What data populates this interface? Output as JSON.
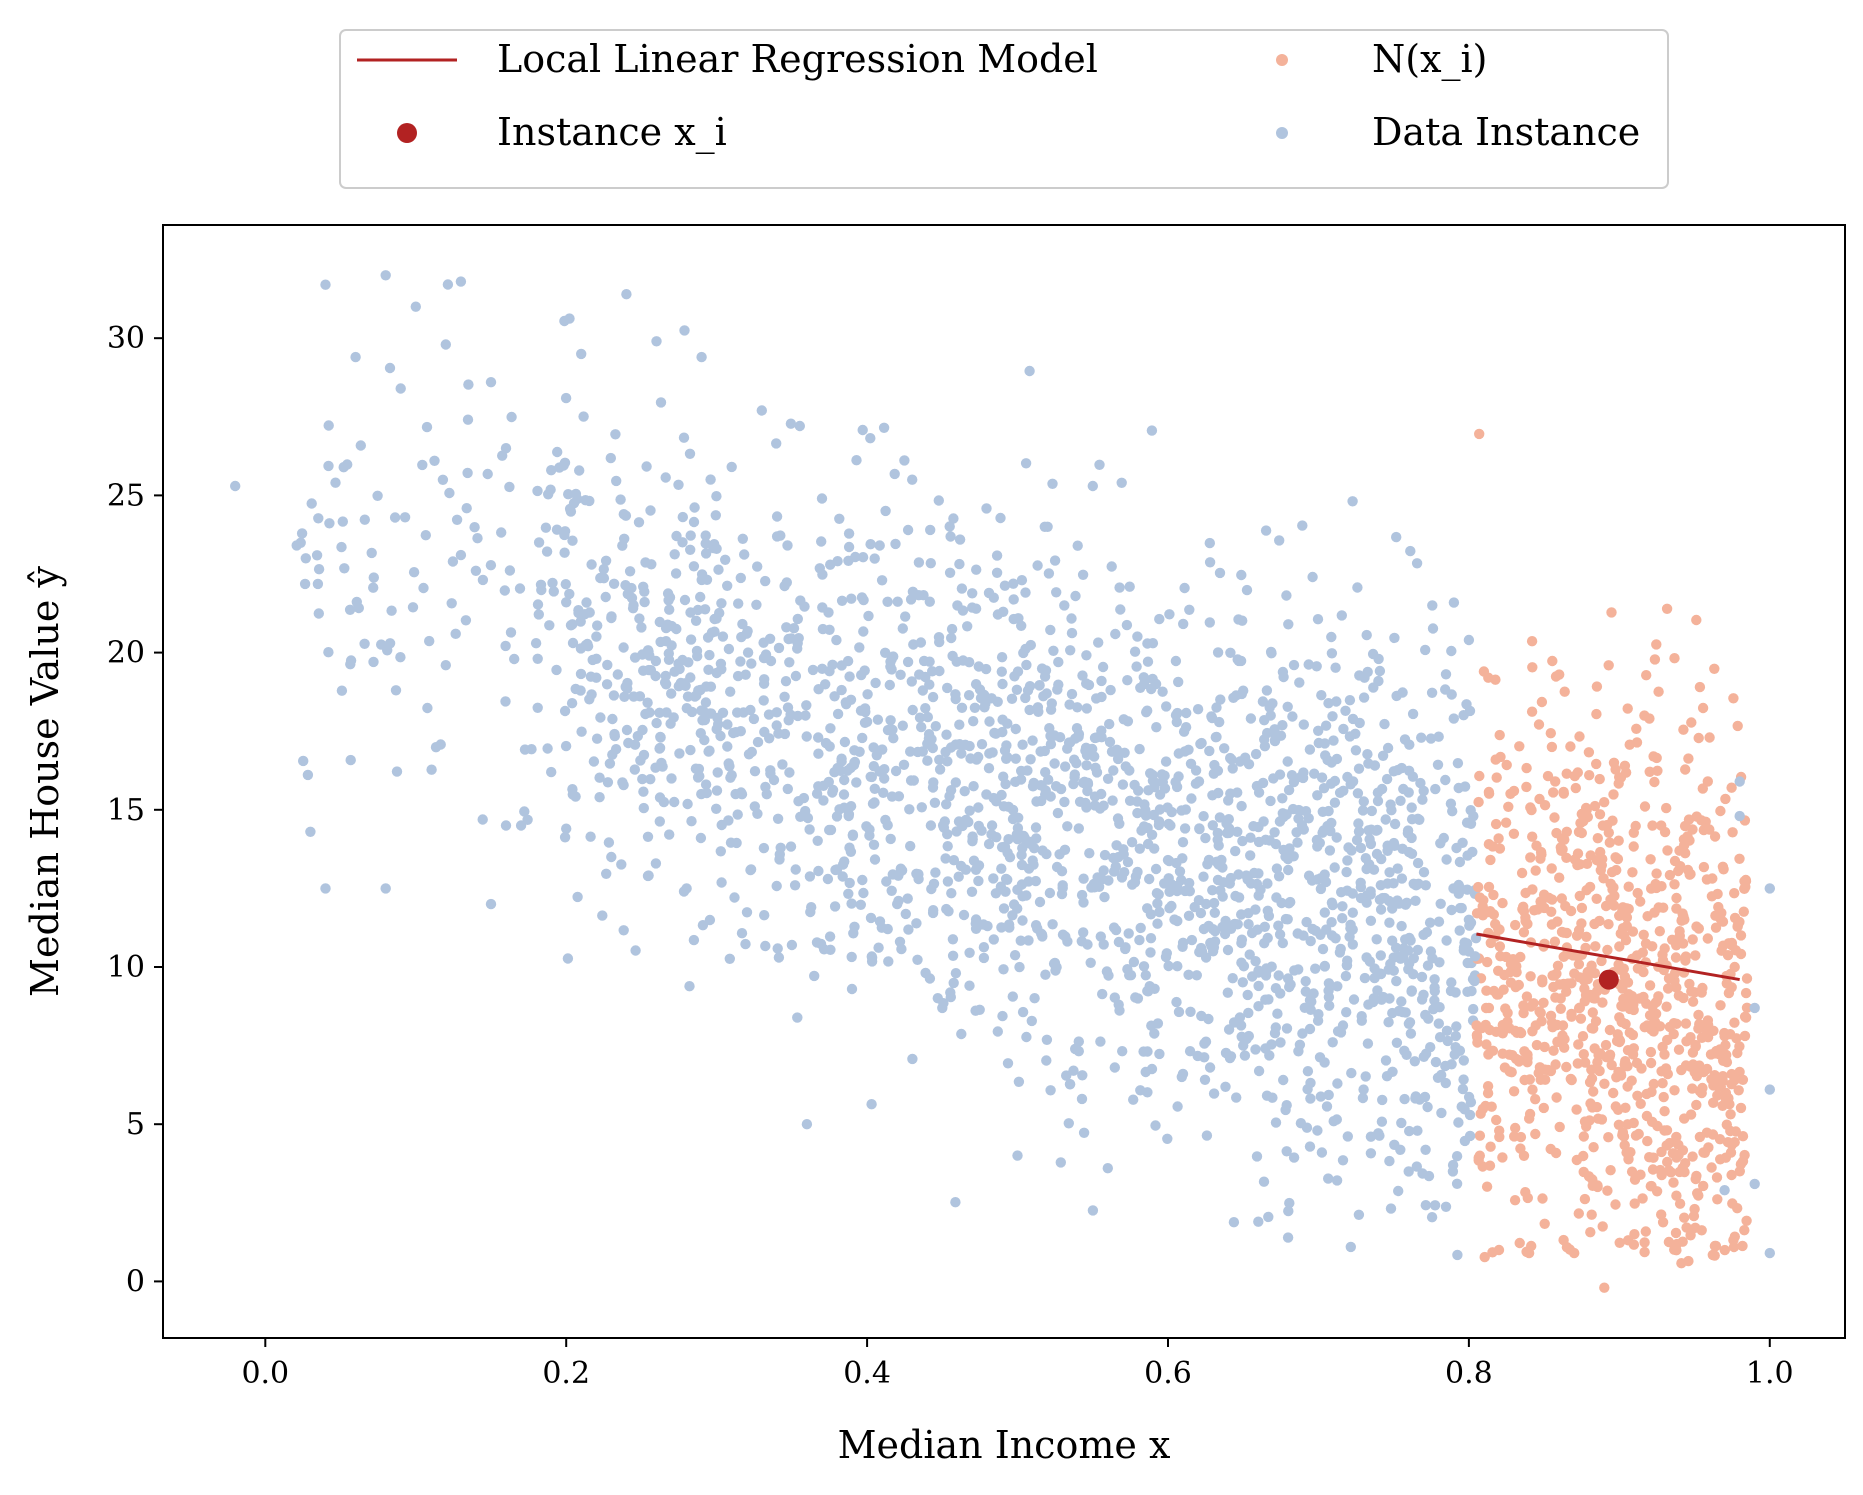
{
  "chart_data": {
    "type": "scatter",
    "title": "",
    "xlabel": "Median Income x",
    "ylabel": "Median House Value ŷ",
    "xlim": [
      -0.068,
      1.05
    ],
    "ylim": [
      -1.8,
      33.6
    ],
    "x_ticks": [
      0.0,
      0.2,
      0.4,
      0.6,
      0.8,
      1.0
    ],
    "x_tick_labels": [
      "0.0",
      "0.2",
      "0.4",
      "0.6",
      "0.8",
      "1.0"
    ],
    "y_ticks": [
      0,
      5,
      10,
      15,
      20,
      25,
      30
    ],
    "y_tick_labels": [
      "0",
      "5",
      "10",
      "15",
      "20",
      "25",
      "30"
    ],
    "grid": false,
    "legend": {
      "placement": "top-center, above plot, 2 columns",
      "entries": [
        {
          "label": "Local Linear Regression Model",
          "marker": "line",
          "color": "#b22222"
        },
        {
          "label": "Instance x_i",
          "marker": "circle",
          "color": "#b22222"
        },
        {
          "label": "N(x_i)",
          "marker": "small-circle",
          "color": "#f4b29a"
        },
        {
          "label": "Data Instance",
          "marker": "small-circle",
          "color": "#b0c4de"
        }
      ]
    },
    "series": [
      {
        "name": "Data Instance",
        "kind": "scatter",
        "color": "#b0c4de",
        "points": [
          [
            -0.02,
            25.3
          ],
          [
            0.03,
            14.3
          ],
          [
            0.04,
            12.5
          ],
          [
            0.04,
            31.7
          ],
          [
            0.06,
            29.4
          ],
          [
            0.08,
            32.0
          ],
          [
            0.08,
            12.5
          ],
          [
            0.09,
            28.4
          ],
          [
            0.1,
            31.0
          ],
          [
            0.12,
            29.8
          ],
          [
            0.12,
            19.6
          ],
          [
            0.13,
            23.1
          ],
          [
            0.13,
            31.8
          ],
          [
            0.14,
            22.6
          ],
          [
            0.15,
            12.0
          ],
          [
            0.15,
            28.6
          ],
          [
            0.16,
            26.5
          ],
          [
            0.16,
            14.5
          ],
          [
            0.17,
            14.5
          ],
          [
            0.18,
            20.3
          ],
          [
            0.19,
            25.8
          ],
          [
            0.19,
            16.2
          ],
          [
            0.2,
            21.6
          ],
          [
            0.2,
            14.4
          ],
          [
            0.21,
            29.5
          ],
          [
            0.22,
            19.2
          ],
          [
            0.23,
            21.1
          ],
          [
            0.23,
            13.5
          ],
          [
            0.24,
            31.4
          ],
          [
            0.25,
            20.8
          ],
          [
            0.26,
            29.9
          ],
          [
            0.27,
            16.0
          ],
          [
            0.28,
            12.5
          ],
          [
            0.29,
            29.4
          ],
          [
            0.3,
            23.3
          ],
          [
            0.31,
            16.1
          ],
          [
            0.32,
            20.6
          ],
          [
            0.33,
            27.7
          ],
          [
            0.34,
            18.1
          ],
          [
            0.35,
            10.7
          ],
          [
            0.36,
            5.0
          ],
          [
            0.37,
            24.9
          ],
          [
            0.38,
            13.1
          ],
          [
            0.39,
            9.3
          ],
          [
            0.4,
            17.8
          ],
          [
            0.41,
            22.3
          ],
          [
            0.42,
            12.0
          ],
          [
            0.43,
            25.5
          ],
          [
            0.44,
            17.1
          ],
          [
            0.45,
            8.7
          ],
          [
            0.46,
            21.5
          ],
          [
            0.47,
            14.0
          ],
          [
            0.48,
            11.3
          ],
          [
            0.49,
            19.0
          ],
          [
            0.5,
            4.0
          ],
          [
            0.51,
            17.2
          ],
          [
            0.52,
            24.0
          ],
          [
            0.53,
            12.6
          ],
          [
            0.54,
            23.4
          ],
          [
            0.55,
            25.3
          ],
          [
            0.56,
            3.6
          ],
          [
            0.57,
            15.8
          ],
          [
            0.58,
            9.0
          ],
          [
            0.59,
            20.3
          ],
          [
            0.6,
            13.4
          ],
          [
            0.61,
            6.6
          ],
          [
            0.62,
            18.2
          ],
          [
            0.63,
            10.5
          ],
          [
            0.64,
            15.3
          ],
          [
            0.65,
            7.5
          ],
          [
            0.66,
            1.9
          ],
          [
            0.67,
            16.0
          ],
          [
            0.68,
            20.9
          ],
          [
            0.69,
            11.0
          ],
          [
            0.7,
            8.5
          ],
          [
            0.71,
            17.2
          ],
          [
            0.72,
            13.8
          ],
          [
            0.73,
            6.1
          ],
          [
            0.74,
            19.8
          ],
          [
            0.75,
            10.3
          ],
          [
            0.76,
            3.5
          ],
          [
            0.77,
            15.6
          ],
          [
            0.78,
            8.2
          ],
          [
            0.79,
            17.9
          ],
          [
            0.8,
            20.4
          ],
          [
            0.8,
            11.5
          ],
          [
            0.98,
            15.9
          ],
          [
            0.99,
            8.7
          ],
          [
            1.0,
            12.5
          ],
          [
            1.0,
            0.9
          ],
          [
            0.99,
            3.1
          ],
          [
            0.98,
            14.8
          ],
          [
            1.0,
            6.1
          ],
          [
            0.97,
            2.9
          ]
        ]
      },
      {
        "name": "N(x_i)",
        "kind": "scatter",
        "color": "#f4b29a",
        "points": [
          [
            0.81,
            19.4
          ],
          [
            0.82,
            1.0
          ],
          [
            0.83,
            15.6
          ],
          [
            0.84,
            0.9
          ],
          [
            0.85,
            12.3
          ],
          [
            0.86,
            19.3
          ],
          [
            0.87,
            0.9
          ],
          [
            0.88,
            16.1
          ],
          [
            0.89,
            -0.2
          ],
          [
            0.9,
            8.4
          ],
          [
            0.91,
            1.5
          ],
          [
            0.92,
            17.9
          ],
          [
            0.93,
            4.8
          ],
          [
            0.94,
            13.7
          ],
          [
            0.95,
            2.3
          ],
          [
            0.96,
            17.3
          ],
          [
            0.97,
            7.8
          ]
        ]
      },
      {
        "name": "Instance x_i",
        "kind": "point",
        "color": "#b22222",
        "points": [
          [
            0.893,
            9.6
          ]
        ]
      },
      {
        "name": "Local Linear Regression Model",
        "kind": "line",
        "color": "#b22222",
        "points": [
          [
            0.805,
            11.05
          ],
          [
            0.98,
            9.6
          ]
        ]
      }
    ]
  }
}
